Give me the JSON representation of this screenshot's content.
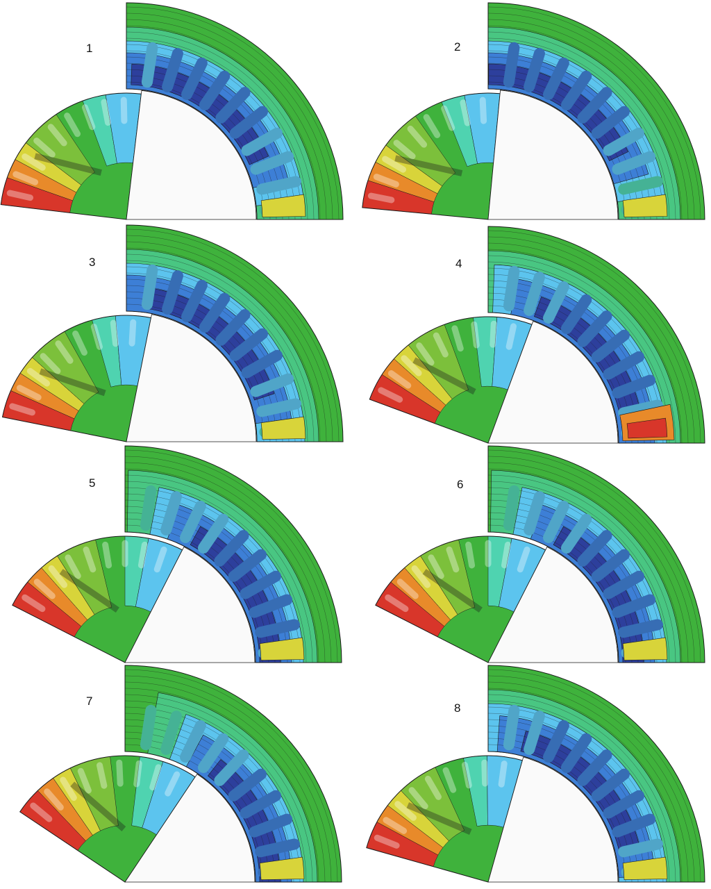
{
  "figure": {
    "panels": [
      {
        "label": "1",
        "rotor_angle_deg": 15,
        "hot_side": "rotor-left"
      },
      {
        "label": "2",
        "rotor_angle_deg": 12,
        "hot_side": "rotor-left"
      },
      {
        "label": "3",
        "rotor_angle_deg": 25,
        "hot_side": "rotor-left"
      },
      {
        "label": "4",
        "rotor_angle_deg": 45,
        "hot_side": "stator-bottom"
      },
      {
        "label": "5",
        "rotor_angle_deg": 60,
        "hot_side": "rotor-left"
      },
      {
        "label": "6",
        "rotor_angle_deg": 60,
        "hot_side": "rotor-left"
      },
      {
        "label": "7",
        "rotor_angle_deg": 75,
        "hot_side": "rotor-left"
      },
      {
        "label": "8",
        "rotor_angle_deg": 35,
        "hot_side": "rotor-left"
      }
    ],
    "palette": {
      "red": "#d8362a",
      "orange": "#e88a2a",
      "yellow": "#d8d43a",
      "green": "#3fb23c",
      "teal": "#4fd3b0",
      "light_blue": "#5cc4ee",
      "blue": "#3d7fd6",
      "dark_blue": "#2d3f9c",
      "line": "#1a1a1a",
      "empty": "#fafafa"
    }
  }
}
